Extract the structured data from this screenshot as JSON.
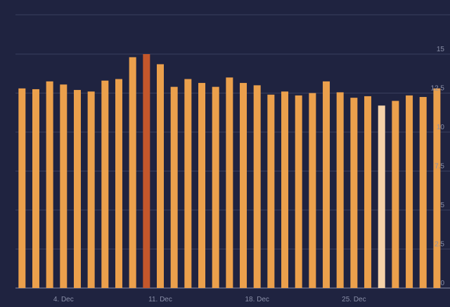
{
  "chart_data": {
    "type": "bar",
    "categories": [
      null,
      null,
      null,
      "4. Dec",
      null,
      null,
      null,
      null,
      null,
      null,
      "11. Dec",
      null,
      null,
      null,
      null,
      null,
      null,
      "18. Dec",
      null,
      null,
      null,
      null,
      null,
      null,
      "25. Dec",
      null,
      null,
      null,
      null,
      null,
      null
    ],
    "values": [
      12.8,
      12.75,
      13.25,
      13.05,
      12.7,
      12.6,
      13.3,
      13.4,
      14.8,
      15.0,
      14.35,
      12.9,
      13.4,
      13.15,
      12.9,
      13.5,
      13.15,
      13.0,
      12.4,
      12.6,
      12.35,
      12.5,
      13.25,
      12.55,
      12.2,
      12.3,
      11.7,
      12.0,
      12.35,
      12.25,
      12.8
    ],
    "colors": [
      "#eba04c",
      "#eba04c",
      "#eba04c",
      "#eba04c",
      "#eba04c",
      "#eba04c",
      "#eba04c",
      "#eba04c",
      "#eba04c",
      "#c4572b",
      "#eba04c",
      "#eba04c",
      "#eba04c",
      "#eba04c",
      "#eba04c",
      "#eba04c",
      "#eba04c",
      "#eba04c",
      "#eba04c",
      "#eba04c",
      "#eba04c",
      "#eba04c",
      "#eba04c",
      "#eba04c",
      "#eba04c",
      "#eba04c",
      "#f5d2a9",
      "#eba04c",
      "#eba04c",
      "#eba04c",
      "#eba04c"
    ],
    "ylim": [
      0,
      17.5
    ],
    "yticks": [
      0,
      2.5,
      5,
      7.5,
      10,
      12.5,
      15
    ],
    "grid": true
  }
}
